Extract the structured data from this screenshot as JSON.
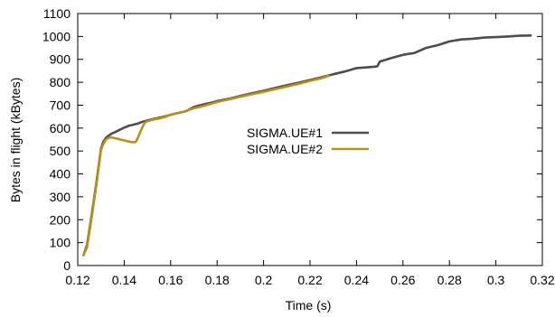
{
  "chart_data": {
    "type": "line",
    "title": "",
    "xlabel": "Time (s)",
    "ylabel": "Bytes in flight (kBytes)",
    "xlim": [
      0.12,
      0.32
    ],
    "ylim": [
      0,
      1100
    ],
    "xticks": [
      0.12,
      0.14,
      0.16,
      0.18,
      0.2,
      0.22,
      0.24,
      0.26,
      0.28,
      0.3,
      0.32
    ],
    "xtick_labels": [
      "0.12",
      "0.14",
      "0.16",
      "0.18",
      "0.2",
      "0.22",
      "0.24",
      "0.26",
      "0.28",
      "0.3",
      "0.32"
    ],
    "yticks": [
      0,
      100,
      200,
      300,
      400,
      500,
      600,
      700,
      800,
      900,
      1000,
      1100
    ],
    "ytick_labels": [
      "0",
      "100",
      "200",
      "300",
      "400",
      "500",
      "600",
      "700",
      "800",
      "900",
      "1000",
      "1100"
    ],
    "grid": false,
    "legend_position": "center",
    "series": [
      {
        "name": "SIGMA.UE#1",
        "color": "#4d4d4d",
        "x": [
          0.1225,
          0.124,
          0.126,
          0.128,
          0.13,
          0.131,
          0.132,
          0.133,
          0.134,
          0.135,
          0.136,
          0.138,
          0.14,
          0.142,
          0.144,
          0.146,
          0.148,
          0.15,
          0.152,
          0.155,
          0.158,
          0.16,
          0.163,
          0.165,
          0.167,
          0.168,
          0.17,
          0.172,
          0.175,
          0.178,
          0.18,
          0.185,
          0.19,
          0.195,
          0.2,
          0.205,
          0.21,
          0.215,
          0.22,
          0.225,
          0.23,
          0.235,
          0.24,
          0.245,
          0.248,
          0.249,
          0.25,
          0.255,
          0.26,
          0.265,
          0.27,
          0.275,
          0.28,
          0.285,
          0.29,
          0.295,
          0.3,
          0.305,
          0.31,
          0.315
        ],
        "y": [
          45,
          90,
          220,
          360,
          510,
          540,
          555,
          565,
          572,
          578,
          582,
          592,
          602,
          610,
          615,
          620,
          628,
          633,
          638,
          645,
          652,
          658,
          666,
          670,
          675,
          682,
          692,
          698,
          705,
          712,
          718,
          728,
          740,
          752,
          763,
          775,
          787,
          798,
          810,
          822,
          835,
          847,
          862,
          866,
          868,
          870,
          890,
          906,
          920,
          928,
          950,
          962,
          978,
          987,
          990,
          995,
          997,
          1000,
          1003,
          1004
        ]
      },
      {
        "name": "SIGMA.UE#2",
        "color": "#b8911d",
        "x": [
          0.1225,
          0.124,
          0.126,
          0.128,
          0.13,
          0.131,
          0.132,
          0.133,
          0.134,
          0.136,
          0.138,
          0.14,
          0.142,
          0.144,
          0.145,
          0.146,
          0.147,
          0.148,
          0.149,
          0.15,
          0.152,
          0.155,
          0.158,
          0.16,
          0.163,
          0.165,
          0.167,
          0.168,
          0.17,
          0.172,
          0.175,
          0.178,
          0.18,
          0.185,
          0.19,
          0.195,
          0.2,
          0.205,
          0.21,
          0.215,
          0.22,
          0.225,
          0.228
        ],
        "y": [
          45,
          80,
          210,
          350,
          505,
          530,
          548,
          556,
          560,
          556,
          551,
          546,
          541,
          538,
          540,
          560,
          585,
          608,
          625,
          630,
          636,
          642,
          650,
          658,
          665,
          670,
          676,
          680,
          686,
          691,
          699,
          708,
          714,
          725,
          737,
          748,
          758,
          770,
          781,
          793,
          806,
          818,
          828
        ]
      }
    ]
  }
}
